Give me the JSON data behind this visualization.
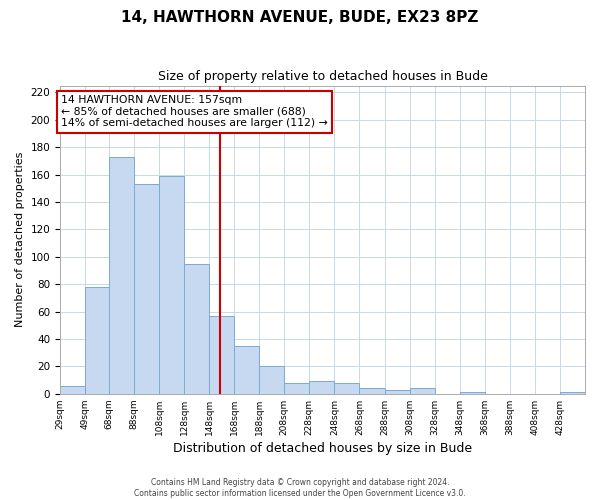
{
  "title": "14, HAWTHORN AVENUE, BUDE, EX23 8PZ",
  "subtitle": "Size of property relative to detached houses in Bude",
  "xlabel": "Distribution of detached houses by size in Bude",
  "ylabel": "Number of detached properties",
  "bin_labels": [
    "29sqm",
    "49sqm",
    "68sqm",
    "88sqm",
    "108sqm",
    "128sqm",
    "148sqm",
    "168sqm",
    "188sqm",
    "208sqm",
    "228sqm",
    "248sqm",
    "268sqm",
    "288sqm",
    "308sqm",
    "328sqm",
    "348sqm",
    "368sqm",
    "388sqm",
    "408sqm",
    "428sqm"
  ],
  "bin_edges": [
    29,
    49,
    68,
    88,
    108,
    128,
    148,
    168,
    188,
    208,
    228,
    248,
    268,
    288,
    308,
    328,
    348,
    368,
    388,
    408,
    428,
    448
  ],
  "bar_heights": [
    6,
    78,
    173,
    153,
    159,
    95,
    57,
    35,
    20,
    8,
    9,
    8,
    4,
    3,
    4,
    0,
    1,
    0,
    0,
    0,
    1
  ],
  "bar_color": "#c6d9f0",
  "bar_edge_color": "#7aabcf",
  "vline_x": 157,
  "vline_color": "#cc0000",
  "annotation_line1": "14 HAWTHORN AVENUE: 157sqm",
  "annotation_line2": "← 85% of detached houses are smaller (688)",
  "annotation_line3": "14% of semi-detached houses are larger (112) →",
  "ylim": [
    0,
    225
  ],
  "yticks": [
    0,
    20,
    40,
    60,
    80,
    100,
    120,
    140,
    160,
    180,
    200,
    220
  ],
  "footer_line1": "Contains HM Land Registry data © Crown copyright and database right 2024.",
  "footer_line2": "Contains public sector information licensed under the Open Government Licence v3.0.",
  "background_color": "#ffffff",
  "grid_color": "#c8d8e8",
  "title_fontsize": 11,
  "subtitle_fontsize": 9,
  "annotation_box_edge_color": "#cc0000",
  "annotation_box_facecolor": "#ffffff",
  "ylabel_fontsize": 8,
  "xlabel_fontsize": 9
}
